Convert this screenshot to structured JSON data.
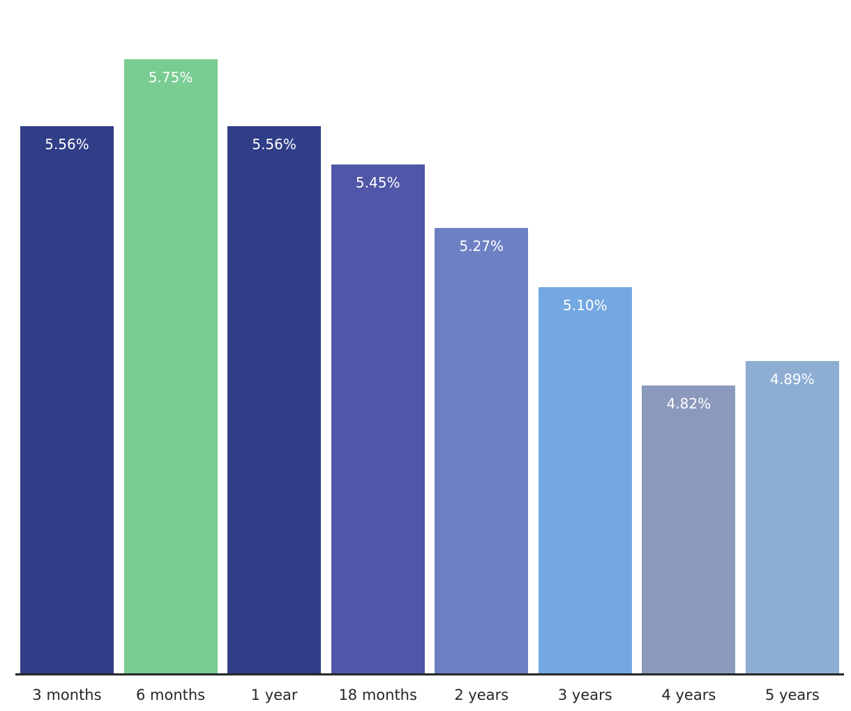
{
  "chart_data": {
    "type": "bar",
    "categories": [
      "3 months",
      "6 months",
      "1 year",
      "18 months",
      "2 years",
      "3 years",
      "4 years",
      "5 years"
    ],
    "values": [
      5.56,
      5.75,
      5.56,
      5.45,
      5.27,
      5.1,
      4.82,
      4.89
    ],
    "value_labels": [
      "5.56%",
      "5.75%",
      "5.56%",
      "5.45%",
      "5.27%",
      "5.10%",
      "4.82%",
      "4.89%"
    ],
    "bar_colors": [
      "#303E88",
      "#79CC92",
      "#303E88",
      "#5057A8",
      "#6E80C4",
      "#74A8E2",
      "#8B99BD",
      "#8EADD3"
    ],
    "title": "",
    "xlabel": "",
    "ylabel": "",
    "ylim": [
      4.0,
      5.75
    ],
    "grid": false,
    "legend": false,
    "value_label_color": "#ffffff",
    "axis_line_color": "#262626",
    "tick_label_color": "#262626",
    "background": "#ffffff"
  }
}
